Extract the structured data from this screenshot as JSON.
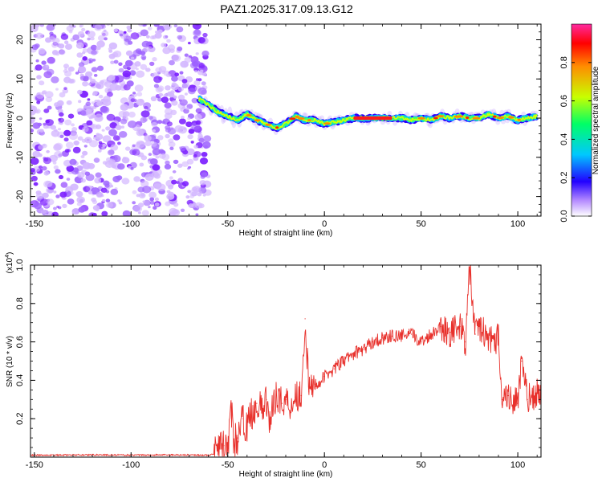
{
  "title": "PAZ1.2025.317.09.13.G12",
  "chart_data": [
    {
      "type": "heatmap",
      "name": "spectrogram",
      "xlabel": "Height of straight line (km)",
      "ylabel": "Frequency (Hz)",
      "xlim": [
        -152,
        112
      ],
      "ylim": [
        -25,
        24
      ],
      "xticks": [
        -150,
        -100,
        -50,
        0,
        50,
        100
      ],
      "yticks": [
        -20,
        -10,
        0,
        10,
        20
      ],
      "noise_region_x": [
        -152,
        -60
      ],
      "signal_ridge": {
        "x": [
          -65,
          -60,
          -55,
          -50,
          -45,
          -40,
          -35,
          -30,
          -25,
          -20,
          -15,
          -10,
          -5,
          0,
          5,
          10,
          15,
          20,
          25,
          30,
          35,
          40,
          45,
          50,
          55,
          60,
          65,
          70,
          75,
          80,
          85,
          90,
          95,
          100,
          105,
          110
        ],
        "freq": [
          5,
          3.5,
          1.5,
          0.5,
          -0.5,
          1,
          -0.5,
          -1.5,
          -2.5,
          -1.5,
          0.5,
          -0.5,
          -0.5,
          -1.5,
          -1,
          -0.5,
          0,
          0,
          0,
          0,
          0,
          0,
          -0.5,
          0,
          -0.5,
          0.5,
          0,
          0.5,
          0,
          0,
          1,
          0,
          0.5,
          -0.5,
          0,
          0.5
        ]
      },
      "colorbar": {
        "label": "Normalized spectral amplitude",
        "ticks": [
          "0.0",
          "0.2",
          "0.4",
          "0.6",
          "0.8"
        ],
        "range": [
          0,
          1
        ]
      }
    },
    {
      "type": "line",
      "name": "snr",
      "xlabel": "Height of straight line (km)",
      "ylabel": "SNR (10 * v/v)",
      "yscale_note": "(x10^4)",
      "scale_prefix": "(x10",
      "scale_exp": "4",
      "xlim": [
        -152,
        112
      ],
      "ylim": [
        0,
        1
      ],
      "xticks": [
        -150,
        -100,
        -50,
        0,
        50,
        100
      ],
      "yticks": [
        "0.2",
        "0.4",
        "0.6",
        "0.8",
        "1.0"
      ],
      "color": "#e8312c",
      "x": [
        -152,
        -140,
        -120,
        -100,
        -80,
        -60,
        -57,
        -55,
        -52,
        -50,
        -48,
        -47,
        -45,
        -42,
        -40,
        -38,
        -35,
        -32,
        -30,
        -28,
        -25,
        -22,
        -20,
        -17,
        -15,
        -12,
        -10,
        -8,
        -5,
        -2,
        0,
        5,
        10,
        15,
        20,
        25,
        30,
        35,
        40,
        45,
        50,
        55,
        60,
        65,
        70,
        73,
        75,
        78,
        80,
        85,
        88,
        90,
        92,
        95,
        100,
        102,
        105,
        108,
        112
      ],
      "values": [
        0.01,
        0.01,
        0.012,
        0.01,
        0.012,
        0.01,
        0.015,
        0.04,
        0.06,
        0.05,
        0.24,
        0.08,
        0.1,
        0.2,
        0.15,
        0.22,
        0.28,
        0.24,
        0.3,
        0.18,
        0.34,
        0.28,
        0.3,
        0.27,
        0.33,
        0.32,
        0.72,
        0.34,
        0.38,
        0.39,
        0.42,
        0.46,
        0.5,
        0.54,
        0.56,
        0.6,
        0.62,
        0.63,
        0.63,
        0.64,
        0.6,
        0.64,
        0.68,
        0.65,
        0.68,
        0.6,
        0.99,
        0.64,
        0.68,
        0.62,
        0.58,
        0.64,
        0.3,
        0.32,
        0.28,
        0.5,
        0.3,
        0.32,
        0.34
      ]
    }
  ]
}
